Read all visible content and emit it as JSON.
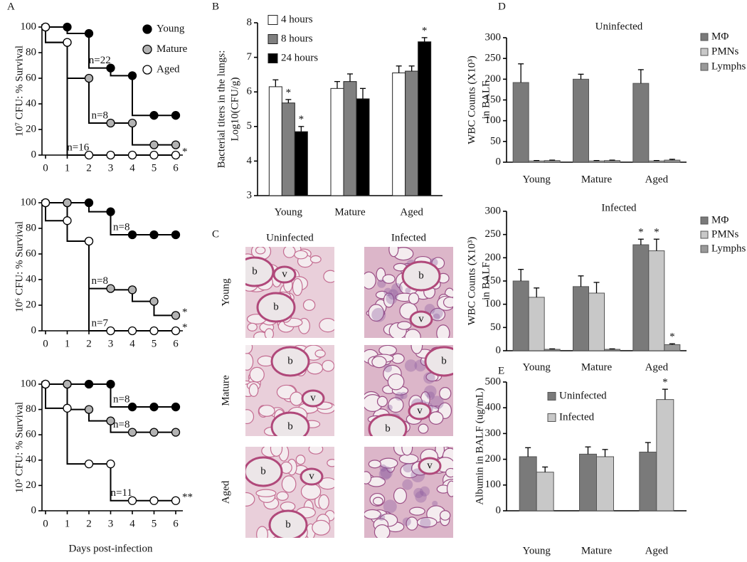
{
  "chart_data": [
    {
      "type": "survival",
      "panel": "A",
      "ylabel": "10⁷ CFU: % Survival",
      "x": [
        0,
        1,
        2,
        3,
        4,
        5,
        6
      ],
      "xlim": [
        0,
        6
      ],
      "xticks": [
        0,
        1,
        2,
        3,
        4,
        5,
        6
      ],
      "ylim": [
        0,
        100
      ],
      "yticks": [
        0,
        20,
        40,
        60,
        80,
        100
      ],
      "legend": "upper right",
      "series": [
        {
          "name": "Young",
          "color": "#000000",
          "values": [
            100,
            100,
            95,
            68,
            62,
            31,
            31
          ]
        },
        {
          "name": "Mature",
          "color": "#b3b3b3",
          "values": [
            100,
            88,
            60,
            25,
            25,
            8,
            8
          ]
        },
        {
          "name": "Aged",
          "color": "#ffffff",
          "values": [
            100,
            88,
            0,
            0,
            0,
            0,
            0
          ]
        }
      ],
      "annotations": [
        {
          "text": "n=22",
          "series": 0,
          "index": 3
        },
        {
          "text": "n=8",
          "series": 1,
          "index": 3
        },
        {
          "text": "n=16",
          "series": 2,
          "index": 2
        },
        {
          "text": "*",
          "series": 2,
          "index": 6
        }
      ]
    },
    {
      "type": "survival",
      "ylabel": "10⁶ CFU: % Survival",
      "x": [
        0,
        1,
        2,
        3,
        4,
        5,
        6
      ],
      "xlim": [
        0,
        6
      ],
      "xticks": [
        0,
        1,
        2,
        3,
        4,
        5,
        6
      ],
      "ylim": [
        0,
        100
      ],
      "yticks": [
        0,
        20,
        40,
        60,
        80,
        100
      ],
      "series": [
        {
          "color": "#000000",
          "values": [
            100,
            100,
            100,
            93,
            75,
            75,
            75
          ]
        },
        {
          "color": "#b3b3b3",
          "values": [
            100,
            100,
            70,
            33,
            32,
            23,
            12
          ]
        },
        {
          "color": "#ffffff",
          "values": [
            100,
            86,
            70,
            0,
            0,
            0,
            0
          ]
        }
      ],
      "annotations": [
        {
          "text": "n=8",
          "series": 0,
          "index": 4
        },
        {
          "text": "n=8",
          "series": 1,
          "index": 3
        },
        {
          "text": "n=7",
          "series": 2,
          "index": 3
        },
        {
          "text": "*",
          "series": 1,
          "index": 6
        },
        {
          "text": "*",
          "series": 2,
          "index": 6
        }
      ]
    },
    {
      "type": "survival",
      "ylabel": "10⁵ CFU: % Survival",
      "xlabel": "Days post-infection",
      "x": [
        0,
        1,
        2,
        3,
        4,
        5,
        6
      ],
      "xlim": [
        0,
        6
      ],
      "xticks": [
        0,
        1,
        2,
        3,
        4,
        5,
        6
      ],
      "ylim": [
        0,
        100
      ],
      "yticks": [
        0,
        20,
        40,
        60,
        80,
        100
      ],
      "series": [
        {
          "color": "#000000",
          "values": [
            100,
            100,
            100,
            100,
            82,
            82,
            82
          ]
        },
        {
          "color": "#b3b3b3",
          "values": [
            100,
            100,
            80,
            71,
            62,
            62,
            62
          ]
        },
        {
          "color": "#ffffff",
          "values": [
            100,
            81,
            37,
            37,
            8,
            8,
            8
          ]
        }
      ],
      "annotations": [
        {
          "text": "n=8",
          "series": 0,
          "index": 4
        },
        {
          "text": "n=8",
          "series": 1,
          "index": 4
        },
        {
          "text": "n=11",
          "series": 2,
          "index": 4
        },
        {
          "text": "**",
          "series": 2,
          "index": 6
        }
      ]
    },
    {
      "type": "bar",
      "panel": "B",
      "ylabel": [
        "Bacterial titers in the lungs:",
        "Log10(CFU/g)"
      ],
      "categories": [
        "Young",
        "Mature",
        "Aged"
      ],
      "ylim": [
        3,
        8
      ],
      "yticks": [
        3,
        4,
        5,
        6,
        7,
        8
      ],
      "legend": "upper left",
      "series": [
        {
          "name": "4 hours",
          "color": "#ffffff",
          "values": [
            6.15,
            6.1,
            6.55
          ],
          "errors": [
            0.2,
            0.2,
            0.2
          ]
        },
        {
          "name": "8 hours",
          "color": "#808080",
          "values": [
            5.68,
            6.3,
            6.6
          ],
          "errors": [
            0.1,
            0.22,
            0.15
          ]
        },
        {
          "name": "24 hours",
          "color": "#000000",
          "values": [
            4.85,
            5.8,
            7.45
          ],
          "errors": [
            0.15,
            0.3,
            0.12
          ]
        }
      ],
      "annotations": [
        {
          "text": "*",
          "series": 1,
          "index": 0
        },
        {
          "text": "*",
          "series": 2,
          "index": 0
        },
        {
          "text": "*",
          "series": 2,
          "index": 2
        }
      ]
    },
    {
      "type": "bar",
      "panel": "D",
      "title": "Uninfected",
      "ylabel": [
        "WBC Counts (X10³)",
        "in BALF"
      ],
      "categories": [
        "Young",
        "Mature",
        "Aged"
      ],
      "ylim": [
        0,
        300
      ],
      "yticks": [
        0,
        50,
        100,
        150,
        200,
        250,
        300
      ],
      "legend": "outside right",
      "series": [
        {
          "name": "MΦ",
          "color": "#7a7a7a",
          "values": [
            192,
            200,
            190
          ],
          "errors": [
            45,
            12,
            33
          ]
        },
        {
          "name": "PMNs",
          "color": "#c8c8c8",
          "values": [
            3,
            3,
            3
          ],
          "errors": [
            1,
            1,
            1
          ]
        },
        {
          "name": "Lymphs",
          "color": "#999999",
          "values": [
            4,
            4,
            5
          ],
          "errors": [
            1,
            1,
            2
          ]
        }
      ]
    },
    {
      "type": "bar",
      "title": "Infected",
      "ylabel": [
        "WBC Counts (X10³)",
        "in BALF"
      ],
      "categories": [
        "Young",
        "Mature",
        "Aged"
      ],
      "ylim": [
        0,
        300
      ],
      "yticks": [
        0,
        50,
        100,
        150,
        200,
        250,
        300
      ],
      "legend": "outside right",
      "series": [
        {
          "name": "MΦ",
          "color": "#7a7a7a",
          "values": [
            150,
            138,
            228
          ],
          "errors": [
            25,
            23,
            12
          ]
        },
        {
          "name": "PMNs",
          "color": "#c8c8c8",
          "values": [
            115,
            124,
            215
          ],
          "errors": [
            20,
            23,
            25
          ]
        },
        {
          "name": "Lymphs",
          "color": "#999999",
          "values": [
            3,
            3,
            13
          ],
          "errors": [
            1,
            1,
            2
          ]
        }
      ],
      "annotations": [
        {
          "text": "*",
          "series": 0,
          "index": 2
        },
        {
          "text": "*",
          "series": 1,
          "index": 2
        },
        {
          "text": "*",
          "series": 2,
          "index": 2
        }
      ]
    },
    {
      "type": "bar",
      "panel": "E",
      "ylabel": [
        "Albumin in BALF (ug/mL)"
      ],
      "categories": [
        "Young",
        "Mature",
        "Aged"
      ],
      "ylim": [
        0,
        500
      ],
      "yticks": [
        0,
        100,
        200,
        300,
        400,
        500
      ],
      "legend": "upper left",
      "series": [
        {
          "name": "Uninfected",
          "color": "#7a7a7a",
          "values": [
            210,
            220,
            228
          ],
          "errors": [
            35,
            28,
            37
          ]
        },
        {
          "name": "Infected",
          "color": "#c8c8c8",
          "values": [
            150,
            210,
            432
          ],
          "errors": [
            20,
            28,
            40
          ]
        }
      ],
      "annotations": [
        {
          "text": "*",
          "series": 1,
          "index": 2
        }
      ]
    }
  ],
  "histology": {
    "panel": "C",
    "columns": [
      "Uninfected",
      "Infected"
    ],
    "rows": [
      "Young",
      "Mature",
      "Aged"
    ],
    "images": [
      {
        "labels": [
          "b",
          "v",
          "b"
        ]
      },
      {
        "labels": [
          "b",
          "v"
        ]
      },
      {
        "labels": [
          "b",
          "v",
          "b"
        ]
      },
      {
        "labels": [
          "b",
          "v",
          "b"
        ]
      },
      {
        "labels": [
          "b",
          "v",
          "b"
        ]
      },
      {
        "labels": [
          "v"
        ]
      }
    ]
  }
}
